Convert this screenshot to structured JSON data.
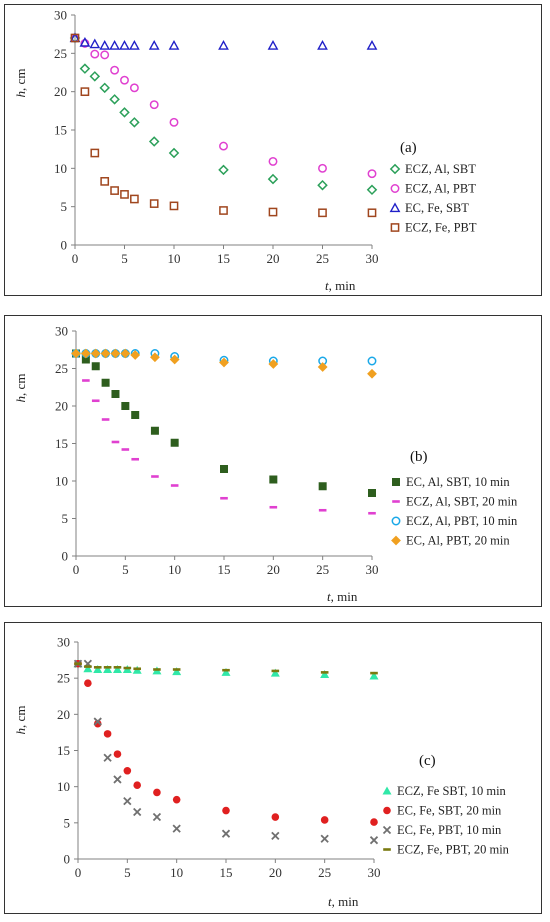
{
  "chart_data": [
    {
      "type": "scatter",
      "panel_label": "(a)",
      "xlabel": "t, min",
      "ylabel": "h, cm",
      "xlim": [
        0,
        30
      ],
      "ylim": [
        0,
        30
      ],
      "x_ticks": [
        0,
        5,
        10,
        15,
        20,
        25,
        30
      ],
      "y_ticks": [
        0,
        5,
        10,
        15,
        20,
        25,
        30
      ],
      "grid": false,
      "legend_position": "right",
      "series": [
        {
          "name": "ECZ, Al, SBT",
          "marker": "diamond-open",
          "color": "#2ca05a",
          "x": [
            0,
            1,
            2,
            3,
            4,
            5,
            6,
            8,
            10,
            15,
            20,
            25,
            30
          ],
          "y": [
            27,
            23,
            22,
            20.5,
            19,
            17.3,
            16,
            13.5,
            12,
            9.8,
            8.6,
            7.8,
            7.2
          ]
        },
        {
          "name": "ECZ, Al, PBT",
          "marker": "circle-open",
          "color": "#e040d0",
          "x": [
            0,
            1,
            2,
            3,
            4,
            5,
            6,
            8,
            10,
            15,
            20,
            25,
            30
          ],
          "y": [
            27,
            26.3,
            24.9,
            24.8,
            22.8,
            21.5,
            20.5,
            18.3,
            16,
            12.9,
            10.9,
            10,
            9.3
          ]
        },
        {
          "name": "EC, Fe, SBT",
          "marker": "triangle-open",
          "color": "#2020c8",
          "x": [
            0,
            1,
            2,
            3,
            4,
            5,
            6,
            8,
            10,
            15,
            20,
            25,
            30
          ],
          "y": [
            27,
            26.4,
            26.2,
            26,
            26,
            26,
            26,
            26,
            26,
            26,
            26,
            26,
            26
          ]
        },
        {
          "name": "ECZ, Fe, PBT",
          "marker": "square-open",
          "color": "#a0461e",
          "x": [
            0,
            1,
            2,
            3,
            4,
            5,
            6,
            8,
            10,
            15,
            20,
            25,
            30
          ],
          "y": [
            27,
            20,
            12,
            8.3,
            7.1,
            6.6,
            6,
            5.4,
            5.1,
            4.5,
            4.3,
            4.2,
            4.2
          ]
        }
      ]
    },
    {
      "type": "scatter",
      "panel_label": "(b)",
      "xlabel": "t, min",
      "ylabel": "h, cm",
      "xlim": [
        0,
        30
      ],
      "ylim": [
        0,
        30
      ],
      "x_ticks": [
        0,
        5,
        10,
        15,
        20,
        25,
        30
      ],
      "y_ticks": [
        0,
        5,
        10,
        15,
        20,
        25,
        30
      ],
      "grid": false,
      "legend_position": "right",
      "series": [
        {
          "name": "EC, Al, SBT, 10 min",
          "marker": "square-filled",
          "color": "#2e5e1e",
          "x": [
            0,
            1,
            2,
            3,
            4,
            5,
            6,
            8,
            10,
            15,
            20,
            25,
            30
          ],
          "y": [
            27,
            26.2,
            25.3,
            23.1,
            21.6,
            20,
            18.8,
            16.7,
            15.1,
            11.6,
            10.2,
            9.3,
            8.4
          ]
        },
        {
          "name": "ECZ, Al, SBT, 20 min",
          "marker": "dash",
          "color": "#e040d0",
          "x": [
            0,
            1,
            2,
            3,
            4,
            5,
            6,
            8,
            10,
            15,
            20,
            25,
            30
          ],
          "y": [
            27,
            23.4,
            20.7,
            18.2,
            15.2,
            14.2,
            12.9,
            10.6,
            9.4,
            7.7,
            6.5,
            6.1,
            5.7
          ]
        },
        {
          "name": "ECZ, Al, PBT, 10 min",
          "marker": "circle-open",
          "color": "#1aa8e8",
          "x": [
            0,
            1,
            2,
            3,
            4,
            5,
            6,
            8,
            10,
            15,
            20,
            25,
            30
          ],
          "y": [
            27,
            27,
            27,
            27,
            27,
            27,
            27,
            27,
            26.6,
            26.1,
            26,
            26,
            26
          ]
        },
        {
          "name": "EC, Al, PBT, 20 min",
          "marker": "diamond-filled",
          "color": "#f0a020",
          "x": [
            0,
            1,
            2,
            3,
            4,
            5,
            6,
            8,
            10,
            15,
            20,
            25,
            30
          ],
          "y": [
            27,
            27,
            27,
            27,
            27,
            27,
            26.8,
            26.5,
            26.2,
            25.8,
            25.6,
            25.2,
            24.3
          ]
        }
      ]
    },
    {
      "type": "scatter",
      "panel_label": "(c)",
      "xlabel": "t, min",
      "ylabel": "h, cm",
      "xlim": [
        0,
        30
      ],
      "ylim": [
        0,
        30
      ],
      "x_ticks": [
        0,
        5,
        10,
        15,
        20,
        25,
        30
      ],
      "y_ticks": [
        0,
        5,
        10,
        15,
        20,
        25,
        30
      ],
      "grid": false,
      "legend_position": "right",
      "series": [
        {
          "name": "ECZ, Fe SBT, 10 min",
          "marker": "triangle-filled",
          "color": "#30e8a8",
          "x": [
            0,
            1,
            2,
            3,
            4,
            5,
            6,
            8,
            10,
            15,
            20,
            25,
            30
          ],
          "y": [
            27,
            26.3,
            26.2,
            26.2,
            26.2,
            26.2,
            26.1,
            26,
            25.9,
            25.8,
            25.7,
            25.5,
            25.3
          ]
        },
        {
          "name": "EC, Fe, SBT, 20 min",
          "marker": "circle-filled",
          "color": "#e02020",
          "x": [
            0,
            1,
            2,
            3,
            4,
            5,
            6,
            8,
            10,
            15,
            20,
            25,
            30
          ],
          "y": [
            27,
            24.3,
            18.7,
            17.3,
            14.5,
            12.2,
            10.2,
            9.2,
            8.2,
            6.7,
            5.8,
            5.4,
            5.1
          ]
        },
        {
          "name": "EC, Fe, PBT, 10 min",
          "marker": "x",
          "color": "#707070",
          "x": [
            0,
            1,
            2,
            3,
            4,
            5,
            6,
            8,
            10,
            15,
            20,
            25,
            30
          ],
          "y": [
            27,
            27,
            19,
            14,
            11,
            8,
            6.5,
            5.8,
            4.2,
            3.5,
            3.2,
            2.8,
            2.6
          ]
        },
        {
          "name": "ECZ, Fe, PBT, 20 min",
          "marker": "dash",
          "color": "#7a7a10",
          "x": [
            0,
            1,
            2,
            3,
            4,
            5,
            6,
            8,
            10,
            15,
            20,
            25,
            30
          ],
          "y": [
            27,
            26.6,
            26.5,
            26.5,
            26.5,
            26.4,
            26.3,
            26.2,
            26.2,
            26.1,
            26,
            25.8,
            25.7
          ]
        }
      ]
    }
  ]
}
